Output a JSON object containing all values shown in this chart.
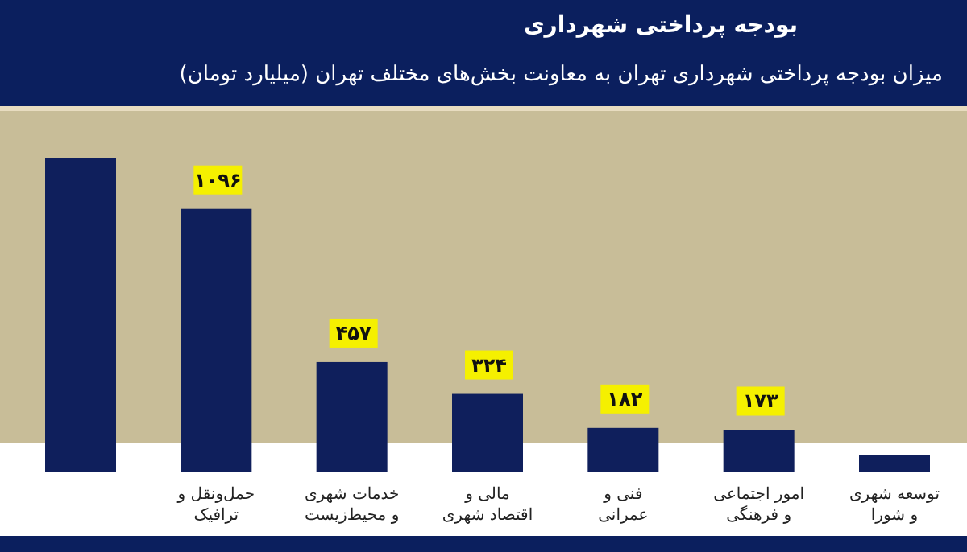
{
  "chart_data": {
    "type": "bar",
    "title": "بودجه پرداختی شهرداری",
    "subtitle": "میزان بودجه پرداختی شهرداری تهران به معاونت بخش‌های مختلف تهران (میلیارد تومان)",
    "categories": [
      null,
      "حمل‌ونقل و ترافیک",
      "خدمات شهری و محیط‌زیست",
      "مالی و اقتصاد شهری",
      "فنی و عمرانی",
      "امور اجتماعی و فرهنگی",
      "توسعه شهری و شورا"
    ],
    "values": [
      1310,
      1096,
      457,
      324,
      182,
      173,
      70
    ],
    "value_labels": [
      null,
      "۱۰۹۶",
      "۴۵۷",
      "۳۲۴",
      "۱۸۲",
      "۱۷۳",
      null
    ],
    "color": "#0f1f5c"
  }
}
